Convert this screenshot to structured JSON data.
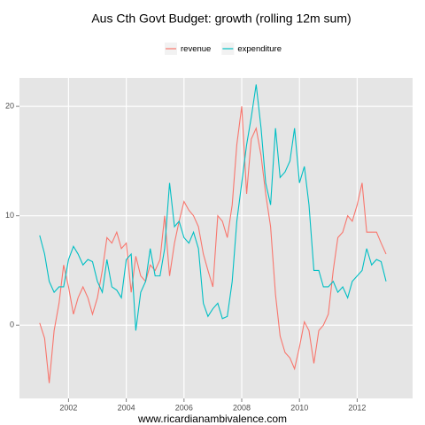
{
  "chart_data": {
    "type": "line",
    "title": "Aus Cth Govt Budget: growth (rolling 12m sum)",
    "xlabel": "www.ricardianambivalence.com",
    "x": [
      2001,
      2001.17,
      2001.33,
      2001.5,
      2001.67,
      2001.83,
      2002,
      2002.17,
      2002.33,
      2002.5,
      2002.67,
      2002.83,
      2003,
      2003.17,
      2003.33,
      2003.5,
      2003.67,
      2003.83,
      2004,
      2004.17,
      2004.33,
      2004.5,
      2004.67,
      2004.83,
      2005,
      2005.17,
      2005.33,
      2005.5,
      2005.67,
      2005.83,
      2006,
      2006.17,
      2006.33,
      2006.5,
      2006.67,
      2006.83,
      2007,
      2007.17,
      2007.33,
      2007.5,
      2007.67,
      2007.83,
      2008,
      2008.17,
      2008.33,
      2008.5,
      2008.67,
      2008.83,
      2009,
      2009.17,
      2009.33,
      2009.5,
      2009.67,
      2009.83,
      2010,
      2010.17,
      2010.33,
      2010.5,
      2010.67,
      2010.83,
      2011,
      2011.17,
      2011.33,
      2011.5,
      2011.67,
      2011.83,
      2012,
      2012.17,
      2012.33,
      2012.5,
      2012.67,
      2012.83,
      2013
    ],
    "series": [
      {
        "name": "revenue",
        "color": "#F8766D",
        "values": [
          0.2,
          -1.2,
          -5.3,
          -0.5,
          2,
          5.5,
          3.5,
          1,
          2.5,
          3.5,
          2.5,
          1,
          2.5,
          5,
          8,
          7.5,
          8.5,
          7,
          7.5,
          3,
          6.3,
          4.5,
          4,
          5.5,
          5,
          6,
          10,
          4.5,
          7.5,
          9.5,
          11.3,
          10.5,
          10,
          9,
          6.5,
          5,
          3.5,
          10,
          9.5,
          8,
          11,
          16.5,
          20,
          12,
          17,
          18,
          15.5,
          12,
          9,
          2.8,
          -1,
          -2.5,
          -3,
          -4,
          -2,
          0.3,
          -0.5,
          -3.5,
          -0.5,
          0,
          1,
          5,
          8,
          8.5,
          10,
          9.5,
          11,
          13,
          8.5,
          8.5,
          8.5,
          7.5,
          6.5
        ]
      },
      {
        "name": "expenditure",
        "color": "#00BFC4",
        "values": [
          8.2,
          6.5,
          4,
          3,
          3.5,
          3.5,
          6,
          7.2,
          6.5,
          5.5,
          6,
          5.8,
          4,
          3,
          6,
          3.5,
          3.2,
          2.5,
          6,
          6.5,
          -0.5,
          3,
          4,
          7,
          4.5,
          4.5,
          7,
          13,
          9,
          9.5,
          8,
          7.5,
          8.5,
          7,
          2,
          0.8,
          1.5,
          2,
          0.6,
          0.8,
          4,
          9.5,
          13,
          16.5,
          19,
          22,
          18,
          13,
          11,
          18,
          13.5,
          14,
          15,
          18,
          13,
          14.5,
          11,
          5,
          5,
          3.5,
          3.5,
          4,
          3,
          3.5,
          2.5,
          4,
          4.5,
          5,
          7,
          5.5,
          6,
          5.8,
          4
        ]
      }
    ],
    "xlim": [
      2000.3,
      2013.92
    ],
    "xticks": [
      2002,
      2004,
      2006,
      2008,
      2010,
      2012
    ],
    "ylim": [
      -6.7,
      22.6
    ],
    "yticks": [
      0,
      10,
      20
    ],
    "grid": true,
    "legend": "top"
  }
}
